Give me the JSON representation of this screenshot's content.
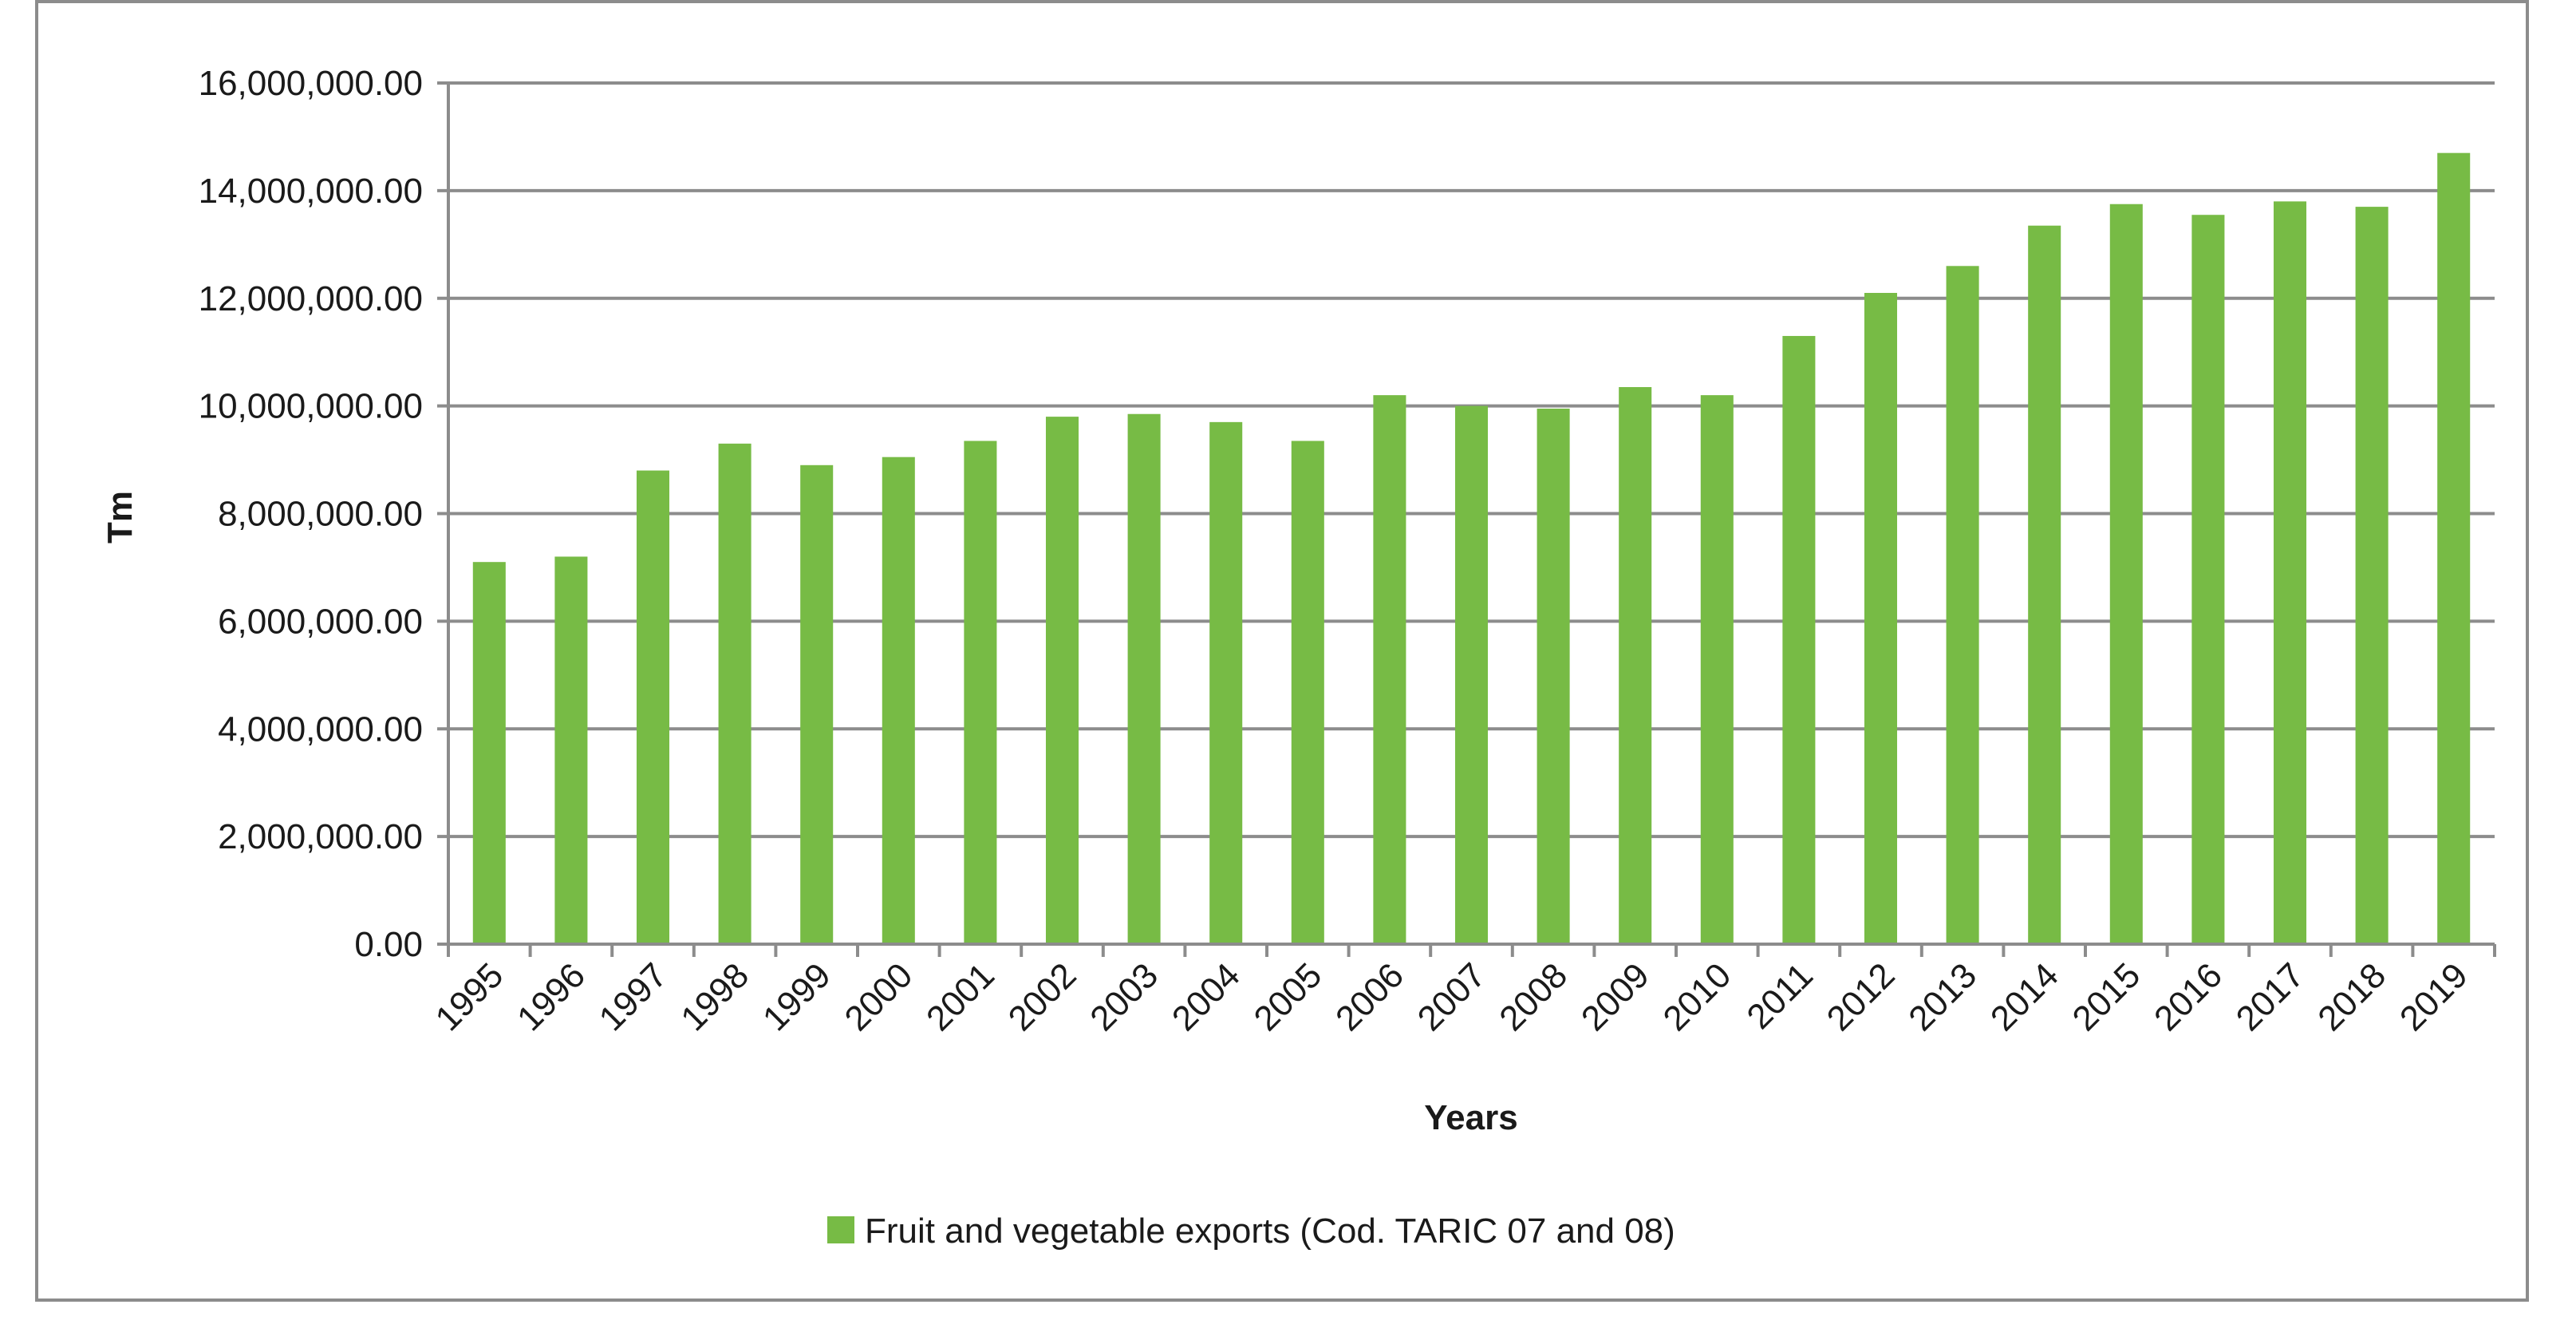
{
  "chart_data": {
    "type": "bar",
    "title": "",
    "xlabel": "Years",
    "ylabel": "Tm",
    "ylim": [
      0,
      16000000
    ],
    "yticks": [
      0,
      2000000,
      4000000,
      6000000,
      8000000,
      10000000,
      12000000,
      14000000,
      16000000
    ],
    "ytick_labels": [
      "0.00",
      "2,000,000.00",
      "4,000,000.00",
      "6,000,000.00",
      "8,000,000.00",
      "10,000,000.00",
      "12,000,000.00",
      "14,000,000.00",
      "16,000,000.00"
    ],
    "grid": true,
    "legend_position": "bottom",
    "categories": [
      "1995",
      "1996",
      "1997",
      "1998",
      "1999",
      "2000",
      "2001",
      "2002",
      "2003",
      "2004",
      "2005",
      "2006",
      "2007",
      "2008",
      "2009",
      "2010",
      "2011",
      "2012",
      "2013",
      "2014",
      "2015",
      "2016",
      "2017",
      "2018",
      "2019"
    ],
    "series": [
      {
        "name": "Fruit and vegetable exports (Cod. TARIC 07 and 08)",
        "color": "#77bb45",
        "values": [
          7100000,
          7200000,
          8800000,
          9300000,
          8900000,
          9050000,
          9350000,
          9800000,
          9850000,
          9700000,
          9350000,
          10200000,
          10000000,
          9950000,
          10350000,
          10200000,
          11300000,
          12100000,
          12600000,
          13350000,
          13750000,
          13550000,
          13800000,
          13700000,
          14700000
        ]
      }
    ],
    "colors": {
      "gridline": "#8c8c8c",
      "axis": "#8c8c8c",
      "bar": "#77bb45"
    }
  }
}
